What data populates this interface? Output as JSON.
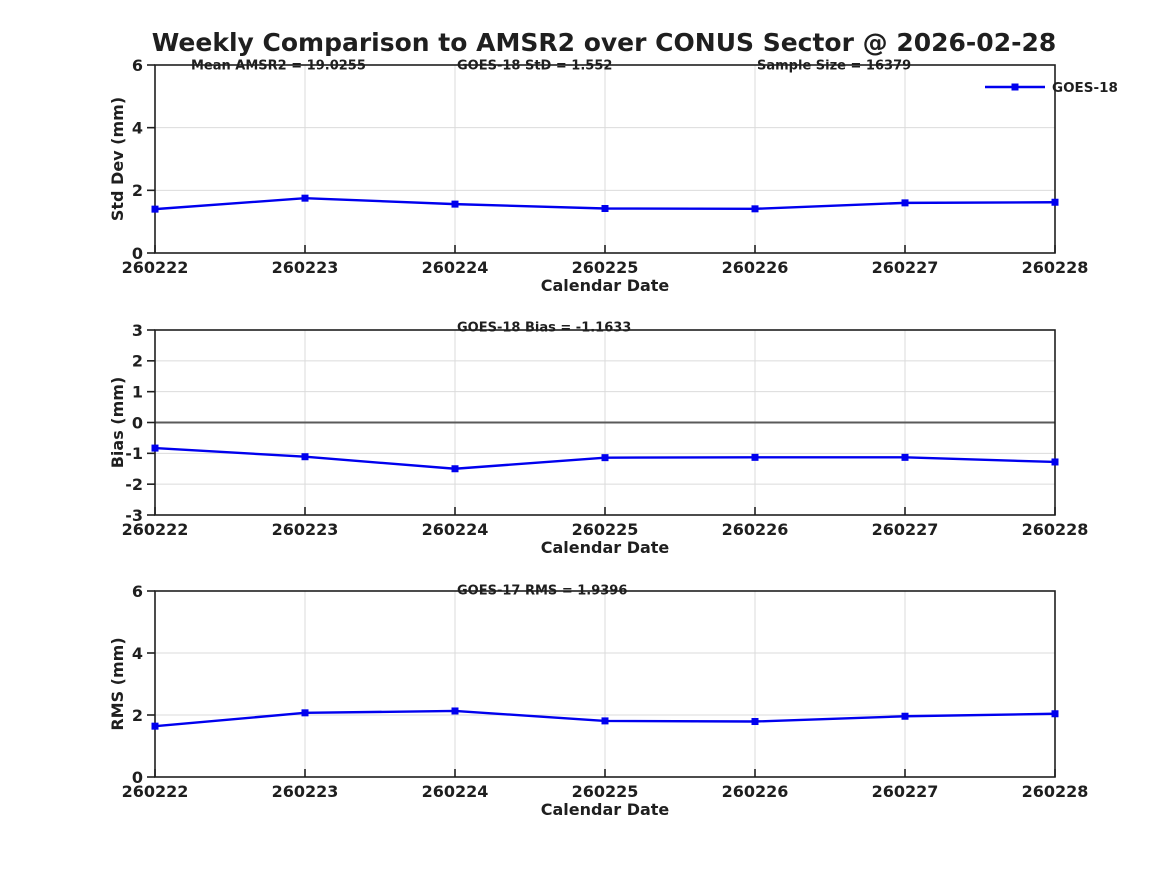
{
  "page_title": "Weekly Comparison to AMSR2 over CONUS Sector @ 2026-02-28",
  "colors": {
    "series_blue": "#0000ee",
    "grid": "#dbdbdb",
    "axis": "#1f1f1f",
    "zero_line": "#5a5a5a",
    "background": "#ffffff",
    "text": "#1f1f1f"
  },
  "chart_data": [
    {
      "id": "stddev",
      "type": "line",
      "title": "Weekly Comparison to AMSR2 over CONUS Sector @ 2026-02-28",
      "categories": [
        "260222",
        "260223",
        "260224",
        "260225",
        "260226",
        "260227",
        "260228"
      ],
      "series": [
        {
          "name": "GOES-18",
          "values": [
            1.4,
            1.75,
            1.56,
            1.42,
            1.41,
            1.6,
            1.62
          ]
        }
      ],
      "xlabel": "Calendar Date",
      "ylabel": "Std Dev (mm)",
      "ylim": [
        0,
        6
      ],
      "yticks": [
        0,
        2,
        4,
        6
      ],
      "grid": true,
      "marker": "square",
      "annotations": [
        "Mean AMSR2 = 19.0255",
        "GOES-18 StD = 1.552",
        "Sample Size = 16379"
      ],
      "legend": {
        "label": "GOES-18",
        "position": "top-right-outside"
      }
    },
    {
      "id": "bias",
      "type": "line",
      "categories": [
        "260222",
        "260223",
        "260224",
        "260225",
        "260226",
        "260227",
        "260228"
      ],
      "series": [
        {
          "name": "GOES-18",
          "values": [
            -0.83,
            -1.11,
            -1.5,
            -1.14,
            -1.13,
            -1.13,
            -1.28
          ]
        }
      ],
      "xlabel": "Calendar Date",
      "ylabel": "Bias (mm)",
      "ylim": [
        -3,
        3
      ],
      "yticks": [
        -3,
        -2,
        -1,
        0,
        1,
        2,
        3
      ],
      "grid": true,
      "zero_line": true,
      "marker": "square",
      "annotations": [
        "GOES-18 Bias  = -1.1633"
      ]
    },
    {
      "id": "rms",
      "type": "line",
      "categories": [
        "260222",
        "260223",
        "260224",
        "260225",
        "260226",
        "260227",
        "260228"
      ],
      "series": [
        {
          "name": "GOES-18",
          "values": [
            1.64,
            2.07,
            2.13,
            1.81,
            1.79,
            1.96,
            2.04
          ]
        }
      ],
      "xlabel": "Calendar Date",
      "ylabel": "RMS (mm)",
      "ylim": [
        0,
        6
      ],
      "yticks": [
        0,
        2,
        4,
        6
      ],
      "grid": true,
      "marker": "square",
      "annotations": [
        "GOES-17 RMS = 1.9396"
      ]
    }
  ]
}
